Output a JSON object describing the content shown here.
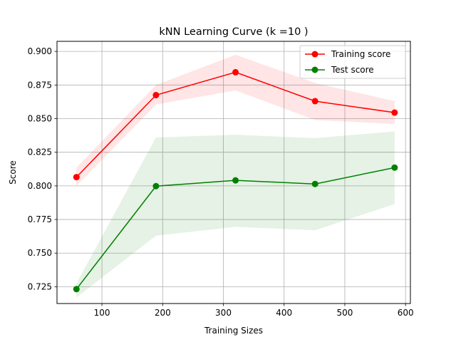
{
  "chart_data": {
    "type": "line",
    "title": "kNN Learning Curve (k =10 )",
    "xlabel": "Training Sizes",
    "ylabel": "Score",
    "xlim": [
      26,
      608
    ],
    "ylim": [
      0.7125,
      0.9075
    ],
    "xticks": [
      100,
      200,
      300,
      400,
      500,
      600
    ],
    "xtick_labels": [
      "100",
      "200",
      "300",
      "400",
      "500",
      "600"
    ],
    "yticks": [
      0.725,
      0.75,
      0.775,
      0.8,
      0.825,
      0.85,
      0.875,
      0.9
    ],
    "ytick_labels": [
      "0.725",
      "0.750",
      "0.775",
      "0.800",
      "0.825",
      "0.850",
      "0.875",
      "0.900"
    ],
    "grid": true,
    "legend_position": "top-right",
    "x": [
      58,
      189,
      320,
      451,
      582
    ],
    "series": [
      {
        "name": "Training score",
        "color": "#ff0000",
        "band_color": "#ff0000",
        "values": [
          0.8065,
          0.8675,
          0.8845,
          0.863,
          0.8545
        ],
        "band_lower": [
          0.8,
          0.8605,
          0.871,
          0.849,
          0.846
        ],
        "band_upper": [
          0.8135,
          0.875,
          0.8975,
          0.8765,
          0.863
        ]
      },
      {
        "name": "Test score",
        "color": "#008000",
        "band_color": "#008000",
        "values": [
          0.7232,
          0.7998,
          0.8041,
          0.8014,
          0.8136
        ],
        "band_lower": [
          0.717,
          0.763,
          0.7695,
          0.767,
          0.7865
        ],
        "band_upper": [
          0.7275,
          0.836,
          0.838,
          0.8355,
          0.8405
        ]
      }
    ]
  }
}
